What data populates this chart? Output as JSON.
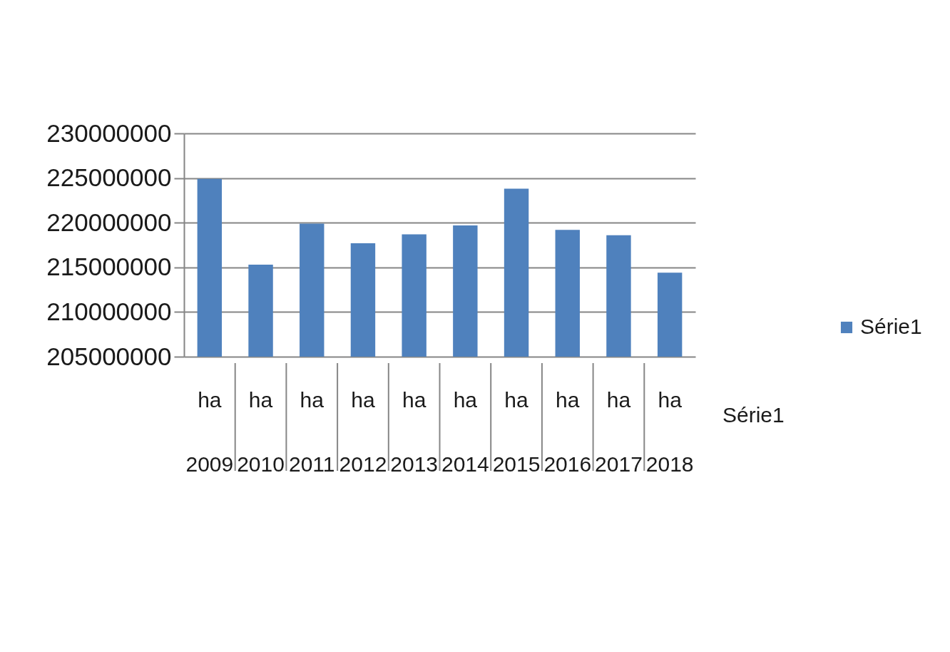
{
  "chart_data": {
    "type": "bar",
    "categories": [
      "ha\n2009",
      "ha\n2010",
      "ha\n2011",
      "ha\n2012",
      "ha\n2013",
      "ha\n2014",
      "ha\n2015",
      "ha\n2016",
      "ha\n2017",
      "ha\n2018"
    ],
    "series": [
      {
        "name": "Série1",
        "color": "#4f81bd",
        "values": [
          224900000,
          215300000,
          219900000,
          217700000,
          218700000,
          219700000,
          223800000,
          219200000,
          218600000,
          214400000
        ]
      }
    ],
    "ylim": [
      205000000,
      230000000
    ],
    "yticks": [
      205000000,
      210000000,
      215000000,
      220000000,
      225000000,
      230000000
    ],
    "grid": "y",
    "legend": "right",
    "annotations": [
      "Série1"
    ]
  }
}
